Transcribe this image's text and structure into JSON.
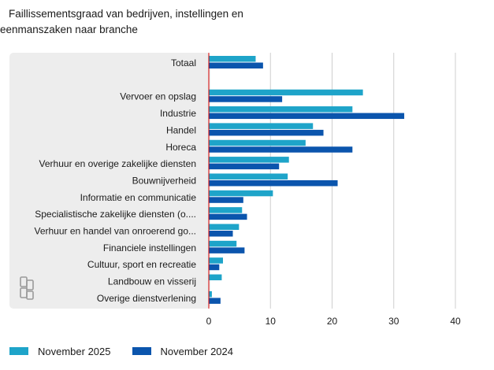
{
  "title_line1": "Faillissementsgraad van bedrijven, instellingen en",
  "title_line2": "eenmanszaken naar branche",
  "chart_data": {
    "type": "bar",
    "orientation": "horizontal",
    "title": "Faillissementsgraad van bedrijven, instellingen en eenmanszaken naar branche",
    "xlim": [
      0,
      40
    ],
    "xticks": [
      "0",
      "10",
      "20",
      "30",
      "40"
    ],
    "categories": [
      "Totaal",
      "",
      "Vervoer en opslag",
      "Industrie",
      "Handel",
      "Horeca",
      "Verhuur en overige zakelijke diensten",
      "Bouwnijverheid",
      "Informatie en communicatie",
      "Specialistische zakelijke diensten (o....",
      "Verhuur en handel van onroerend go...",
      "Financiele instellingen",
      "Cultuur, sport en recreatie",
      "Landbouw en visserij",
      "Overige dienstverlening"
    ],
    "series": [
      {
        "name": "November 2025",
        "color": "#1ea4c9",
        "values": [
          7.6,
          null,
          25.0,
          23.3,
          16.9,
          15.7,
          13.0,
          12.8,
          10.4,
          5.4,
          4.9,
          4.5,
          2.3,
          2.1,
          0.5
        ]
      },
      {
        "name": "November 2024",
        "color": "#0b55ad",
        "values": [
          8.8,
          null,
          11.9,
          31.7,
          18.6,
          23.3,
          11.4,
          20.9,
          5.6,
          6.2,
          3.9,
          5.8,
          1.7,
          null,
          1.9
        ]
      }
    ]
  },
  "colors": {
    "band": "#ededed",
    "grid": "#cfcfcf",
    "zero_line": "#d40000"
  }
}
